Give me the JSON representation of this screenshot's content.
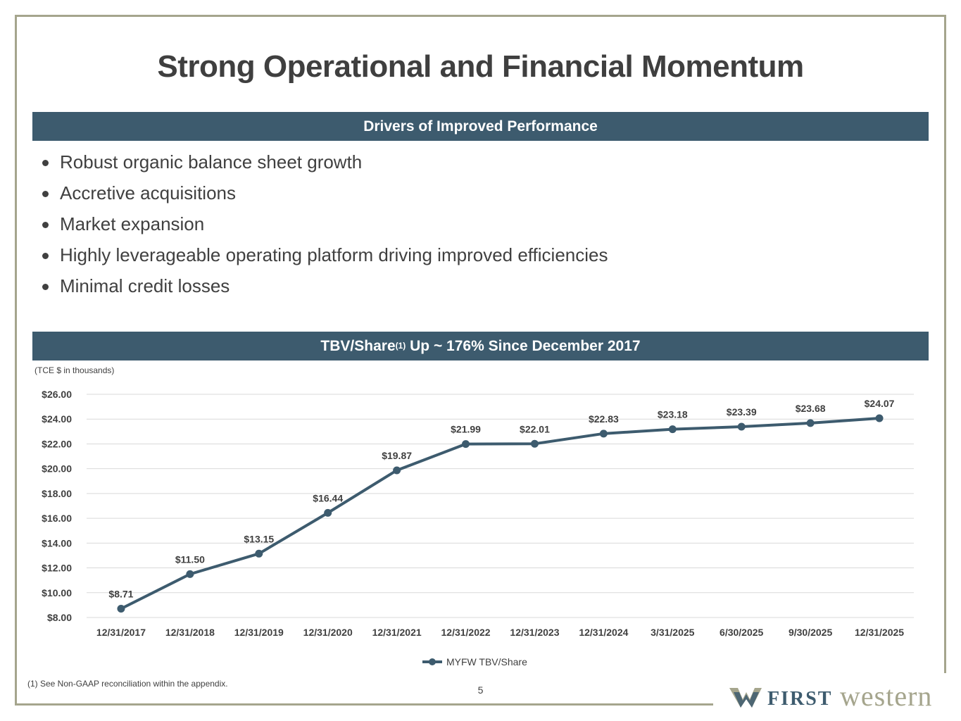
{
  "page": {
    "title": "Strong Operational and Financial Momentum",
    "drivers_header": "Drivers of Improved Performance",
    "drivers": [
      "Robust organic balance sheet growth",
      "Accretive acquisitions",
      "Market expansion",
      "Highly leverageable operating platform driving improved efficiencies",
      "Minimal credit losses"
    ],
    "chart_header_main": "TBV/Share",
    "chart_header_sup": "(1)",
    "chart_header_tail": " Up ~ 176% Since December 2017",
    "units_note": "(TCE $ in thousands)",
    "footnote": "(1) See Non-GAAP reconciliation within the appendix.",
    "page_number": "5",
    "logo_first": "FIRST",
    "logo_western": "western"
  },
  "colors": {
    "band": "#3d5b6e",
    "line": "#3d5b6e",
    "frame": "#a5a58d",
    "grid": "#d9d9d9",
    "text": "#404040"
  },
  "chart_data": {
    "type": "line",
    "title": "TBV/Share(1) Up ~ 176% Since December 2017",
    "categories": [
      "12/31/2017",
      "12/31/2018",
      "12/31/2019",
      "12/31/2020",
      "12/31/2021",
      "12/31/2022",
      "12/31/2023",
      "12/31/2024",
      "3/31/2025",
      "6/30/2025",
      "9/30/2025",
      "12/31/2025"
    ],
    "series": [
      {
        "name": "MYFW TBV/Share",
        "values": [
          8.71,
          11.5,
          13.15,
          16.44,
          19.87,
          21.99,
          22.01,
          22.83,
          23.18,
          23.39,
          23.68,
          24.07
        ],
        "labels": [
          "$8.71",
          "$11.50",
          "$13.15",
          "$16.44",
          "$19.87",
          "$21.99",
          "$22.01",
          "$22.83",
          "$23.18",
          "$23.39",
          "$23.68",
          "$24.07"
        ]
      }
    ],
    "ylim": [
      8,
      26
    ],
    "yticks": [
      8,
      10,
      12,
      14,
      16,
      18,
      20,
      22,
      24,
      26
    ],
    "ytick_labels": [
      "$8.00",
      "$10.00",
      "$12.00",
      "$14.00",
      "$16.00",
      "$18.00",
      "$20.00",
      "$22.00",
      "$24.00",
      "$26.00"
    ],
    "xlabel": "",
    "ylabel": "",
    "grid": true,
    "legend": "bottom-center"
  }
}
